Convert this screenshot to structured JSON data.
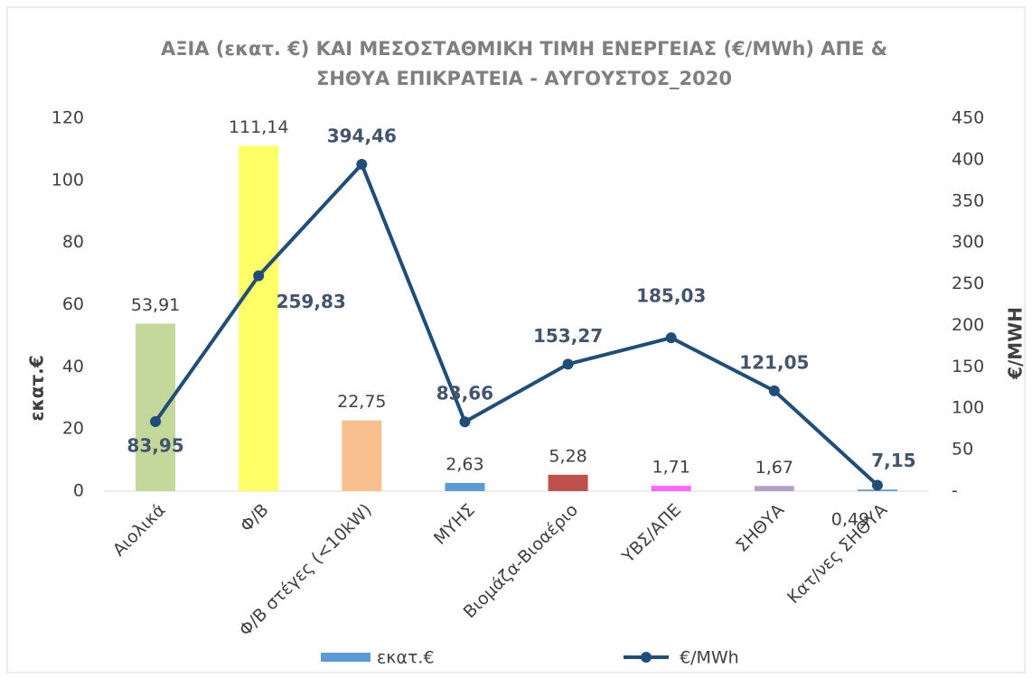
{
  "chart_data": {
    "type": "bar",
    "title": "ΑΞΙΑ (εκατ. €) ΚΑΙ ΜΕΣΟΣΤΑΘΜΙΚΗ ΤΙΜΗ ΕΝΕΡΓΕΙΑΣ (€/MWh) ΑΠΕ &",
    "subtitle": "ΣΗΘΥΑ ΕΠΙΚΡΑΤΕΙΑ - ΑΥΓΟΥΣΤΟΣ_2020",
    "y_label": "εκατ.€",
    "y2_label": "€/MWH",
    "categories": [
      "Αιολικά",
      "Φ/Β",
      "Φ/Β στέγες (<10kW)",
      "ΜΥΗΣ",
      "Βιομάζα-Βιοαέριο",
      "ΥΒΣ/ΑΠΕ",
      "ΣΗΘΥΑ",
      "Κατ/νες ΣΗΘΥΑ"
    ],
    "series": [
      {
        "name": "εκατ.€",
        "type": "bar",
        "color": "#5b9bd5",
        "colors": [
          "#c5d89b",
          "#ffff66",
          "#f9c08f",
          "#5b9bd5",
          "#c0504d",
          "#ff66ff",
          "#b3a2c7",
          "#5b9bd5"
        ],
        "values": [
          53.91,
          111.14,
          22.75,
          2.63,
          5.28,
          1.71,
          1.67,
          0.49
        ],
        "value_labels": [
          "53,91",
          "111,14",
          "22,75",
          "2,63",
          "5,28",
          "1,71",
          "1,67",
          "0,49"
        ]
      },
      {
        "name": "€/MWh",
        "type": "line",
        "axis": "y2",
        "color": "#1f4e79",
        "values": [
          83.95,
          259.83,
          394.46,
          83.66,
          153.27,
          185.03,
          121.05,
          7.15
        ],
        "value_labels": [
          "83,95",
          "259,83",
          "394,46",
          "83,66",
          "153,27",
          "185,03",
          "121,05",
          "7,15"
        ]
      }
    ],
    "ylim": [
      0,
      120
    ],
    "yticks": [
      0,
      20,
      40,
      60,
      80,
      100,
      120
    ],
    "y2lim": [
      0,
      450
    ],
    "y2ticks": [
      {
        "value": 0,
        "label": "-"
      },
      50,
      100,
      150,
      200,
      250,
      300,
      350,
      400,
      450
    ],
    "grid": false,
    "legend": "bottom"
  }
}
